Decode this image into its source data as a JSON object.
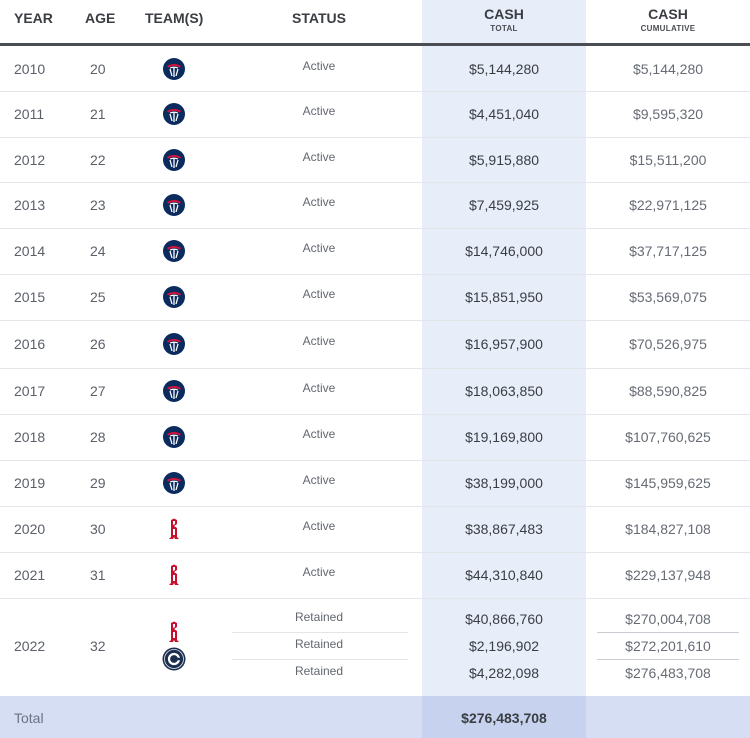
{
  "header": {
    "year": "YEAR",
    "age": "AGE",
    "teams": "TEAM(S)",
    "status": "STATUS",
    "cash": "CASH",
    "cash_sub": "TOTAL",
    "cumulative": "CASH",
    "cumulative_sub": "CUMULATIVE"
  },
  "colors": {
    "wizards_blue": "#0b2a5e",
    "wizards_red": "#d3113b",
    "rockets_red": "#c8102e",
    "clippers_navy": "#1d2f4f",
    "cash_column_bg": "#e7edf9",
    "total_row_bg": "#d5def2"
  },
  "rows": [
    {
      "year": "2010",
      "age": "20",
      "team_icon": "wizards-logo-icon",
      "status": "Active",
      "cash": "$5,144,280",
      "cumulative": "$5,144,280"
    },
    {
      "year": "2011",
      "age": "21",
      "team_icon": "wizards-logo-icon",
      "status": "Active",
      "cash": "$4,451,040",
      "cumulative": "$9,595,320"
    },
    {
      "year": "2012",
      "age": "22",
      "team_icon": "wizards-logo-icon",
      "status": "Active",
      "cash": "$5,915,880",
      "cumulative": "$15,511,200"
    },
    {
      "year": "2013",
      "age": "23",
      "team_icon": "wizards-logo-icon",
      "status": "Active",
      "cash": "$7,459,925",
      "cumulative": "$22,971,125"
    },
    {
      "year": "2014",
      "age": "24",
      "team_icon": "wizards-logo-icon",
      "status": "Active",
      "cash": "$14,746,000",
      "cumulative": "$37,717,125"
    },
    {
      "year": "2015",
      "age": "25",
      "team_icon": "wizards-logo-icon",
      "status": "Active",
      "cash": "$15,851,950",
      "cumulative": "$53,569,075"
    },
    {
      "year": "2016",
      "age": "26",
      "team_icon": "wizards-logo-icon",
      "status": "Active",
      "cash": "$16,957,900",
      "cumulative": "$70,526,975"
    },
    {
      "year": "2017",
      "age": "27",
      "team_icon": "wizards-logo-icon",
      "status": "Active",
      "cash": "$18,063,850",
      "cumulative": "$88,590,825"
    },
    {
      "year": "2018",
      "age": "28",
      "team_icon": "wizards-logo-icon",
      "status": "Active",
      "cash": "$19,169,800",
      "cumulative": "$107,760,625"
    },
    {
      "year": "2019",
      "age": "29",
      "team_icon": "wizards-logo-icon",
      "status": "Active",
      "cash": "$38,199,000",
      "cumulative": "$145,959,625"
    },
    {
      "year": "2020",
      "age": "30",
      "team_icon": "rockets-logo-icon",
      "status": "Active",
      "cash": "$38,867,483",
      "cumulative": "$184,827,108"
    },
    {
      "year": "2021",
      "age": "31",
      "team_icon": "rockets-logo-icon",
      "status": "Active",
      "cash": "$44,310,840",
      "cumulative": "$229,137,948"
    }
  ],
  "row_2022": {
    "year": "2022",
    "age": "32",
    "team_icons": [
      "rockets-logo-icon",
      "clippers-logo-icon"
    ],
    "entries": [
      {
        "status": "Retained",
        "cash": "$40,866,760",
        "cumulative": "$270,004,708"
      },
      {
        "status": "Retained",
        "cash": "$2,196,902",
        "cumulative": "$272,201,610"
      },
      {
        "status": "Retained",
        "cash": "$4,282,098",
        "cumulative": "$276,483,708"
      }
    ]
  },
  "total": {
    "label": "Total",
    "value": "$276,483,708"
  }
}
